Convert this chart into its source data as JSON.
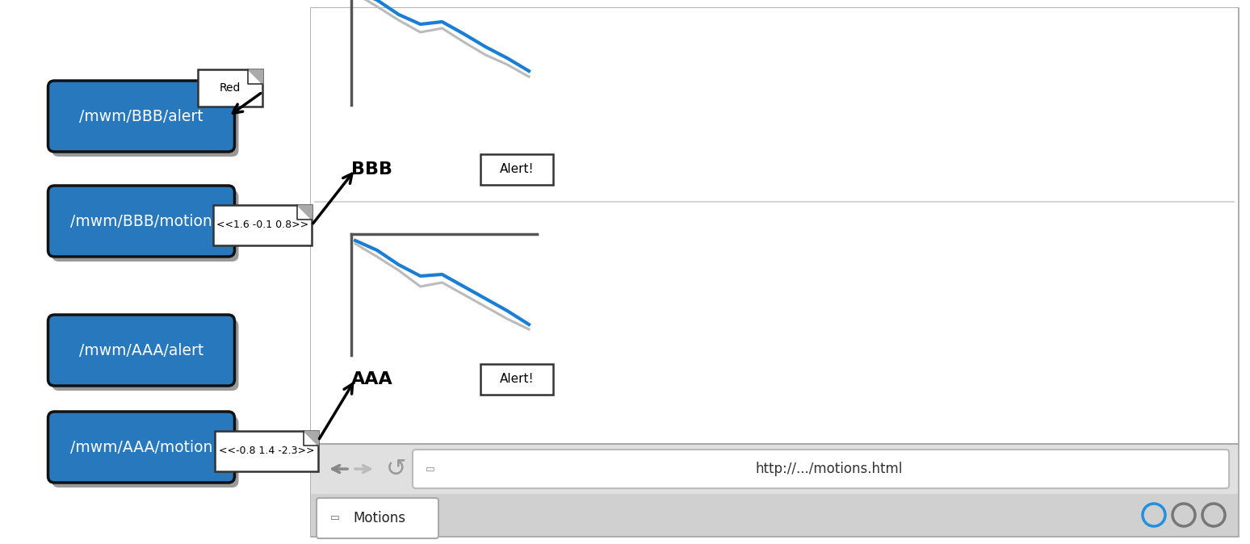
{
  "blue_box_color": "#2878BE",
  "blue_box_edge_color": "#111111",
  "blue_box_text_color": "#ffffff",
  "box_shadow_color": "#999999",
  "background_color": "#ffffff",
  "graph_line_blue": "#1a7fd4",
  "graph_line_gray": "#bbbbbb",
  "tab_text": "Motions",
  "url_text": "http://.../motions.html",
  "section_AAA_label": "AAA",
  "section_BBB_label": "BBB",
  "alert_button_text": "Alert!",
  "msg_aaa": "<<-0.8 1.4 -2.3>>",
  "msg_bbb": "<<1.6 -0.1 0.8>>",
  "msg_red": "Red"
}
